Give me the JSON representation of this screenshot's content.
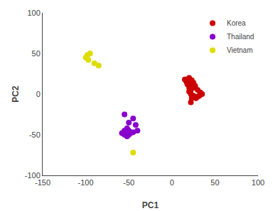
{
  "chart_data": {
    "type": "scatter",
    "xlabel": "PC1",
    "ylabel": "PC2",
    "xlim": [
      -150,
      100
    ],
    "ylim": [
      -100,
      100
    ],
    "xticks": [
      -150,
      -100,
      -50,
      0,
      50,
      100
    ],
    "yticks": [
      -100,
      -50,
      0,
      50,
      100
    ],
    "grid": false,
    "legend": "upper right",
    "series": [
      {
        "name": "Korea",
        "color": "#cc0000",
        "x": [
          15,
          17,
          18,
          20,
          22,
          20,
          22,
          25,
          23,
          28,
          30,
          32,
          35,
          33,
          30,
          27,
          25,
          22,
          20,
          18,
          20,
          23,
          25,
          27,
          22
        ],
        "values": [
          18,
          15,
          12,
          8,
          5,
          3,
          0,
          -2,
          -5,
          -5,
          -3,
          -2,
          0,
          2,
          5,
          8,
          10,
          12,
          16,
          18,
          20,
          17,
          14,
          10,
          -10
        ]
      },
      {
        "name": "Thailand",
        "color": "#8800cc",
        "x": [
          -55,
          -50,
          -52,
          -55,
          -58,
          -55,
          -52,
          -50,
          -48,
          -50,
          -45,
          -40,
          -42,
          -45
        ],
        "values": [
          -25,
          -35,
          -42,
          -45,
          -48,
          -50,
          -52,
          -50,
          -48,
          -45,
          -47,
          -45,
          -38,
          -30
        ]
      },
      {
        "name": "Vietnam",
        "color": "#dddd00",
        "x": [
          -95,
          -98,
          -100,
          -97,
          -85,
          -90,
          -45
        ],
        "values": [
          50,
          48,
          45,
          42,
          35,
          38,
          -72
        ]
      }
    ]
  }
}
